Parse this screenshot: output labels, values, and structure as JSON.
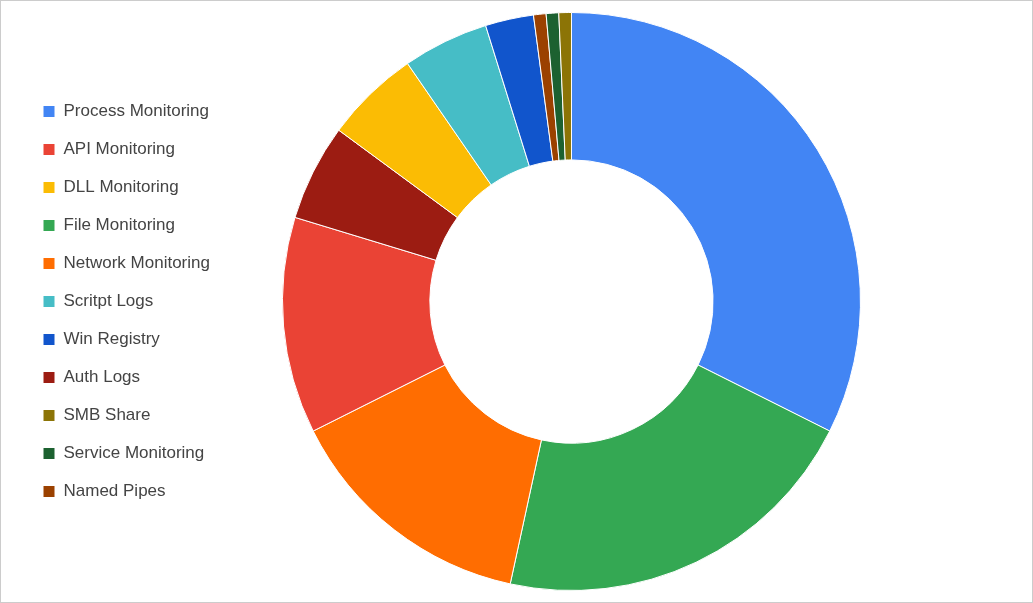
{
  "chart_data": {
    "type": "doughnut",
    "categories": [
      "Process Monitoring",
      "File Monitoring",
      "Network Monitoring",
      "API Monitoring",
      "Auth Logs",
      "DLL Monitoring",
      "Scritpt Logs",
      "Win Registry",
      "Named Pipes",
      "Service Monitoring",
      "SMB Share"
    ],
    "values": [
      32.4,
      21,
      14.2,
      12.1,
      5.4,
      5.3,
      4.8,
      2.7,
      0.7,
      0.7,
      0.7
    ],
    "colors": [
      "#4285f4",
      "#34a853",
      "#ff6d01",
      "#ea4335",
      "#9c1c12",
      "#fbbc04",
      "#46bdc6",
      "#1155cc",
      "#9b4100",
      "#1c6130",
      "#8c7406"
    ],
    "legend": "left"
  }
}
